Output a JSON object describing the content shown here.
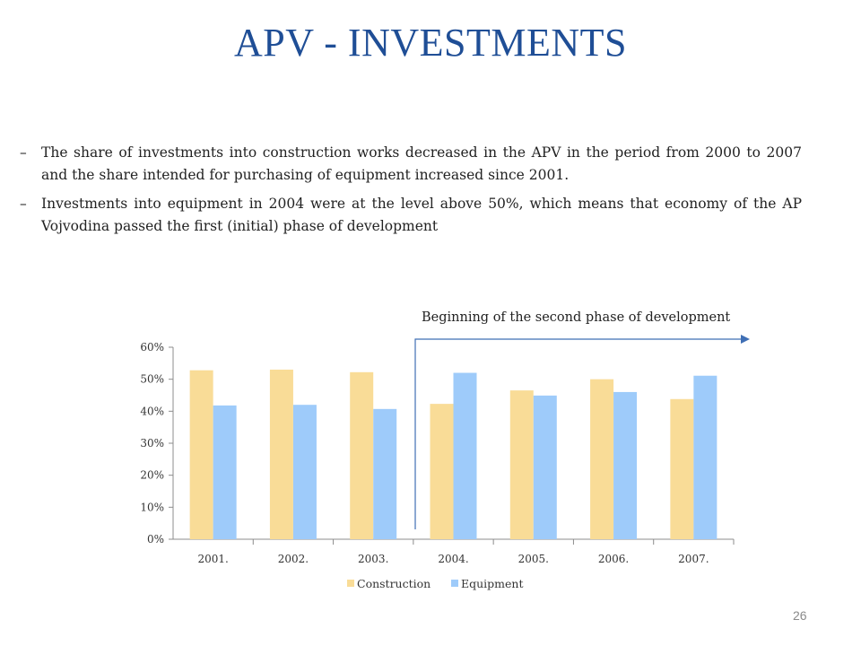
{
  "slide": {
    "title": "APV - INVESTMENTS",
    "bullet_marker": "–",
    "bullets": [
      "The share of investments into construction works decreased in the APV in the period from 2000 to 2007 and the share intended for purchasing of equipment increased since 2001.",
      "Investments into equipment in 2004 were at the level above 50%, which means that economy of the AP Vojvodina passed the first (initial) phase of development"
    ],
    "annotation": "Beginning of the second phase of development",
    "page_number": "26"
  },
  "colors": {
    "title": "#1f4e96",
    "construction": "#f9dc97",
    "equipment": "#9ecbfa",
    "arrow": "#3f6fb5",
    "axis": "#8c8c8c"
  },
  "chart_data": {
    "type": "bar",
    "categories": [
      "2001.",
      "2002.",
      "2003.",
      "2004.",
      "2005.",
      "2006.",
      "2007."
    ],
    "series": [
      {
        "name": "Construction",
        "values": [
          52.8,
          53.0,
          52.2,
          42.3,
          46.5,
          50.0,
          43.8
        ]
      },
      {
        "name": "Equipment",
        "values": [
          41.8,
          42.0,
          40.7,
          52.0,
          44.9,
          46.0,
          51.1
        ]
      }
    ],
    "yticks": [
      "0%",
      "10%",
      "20%",
      "30%",
      "40%",
      "50%",
      "60%"
    ],
    "ylim": [
      0,
      60
    ],
    "grid": false,
    "legend": "bottom"
  }
}
